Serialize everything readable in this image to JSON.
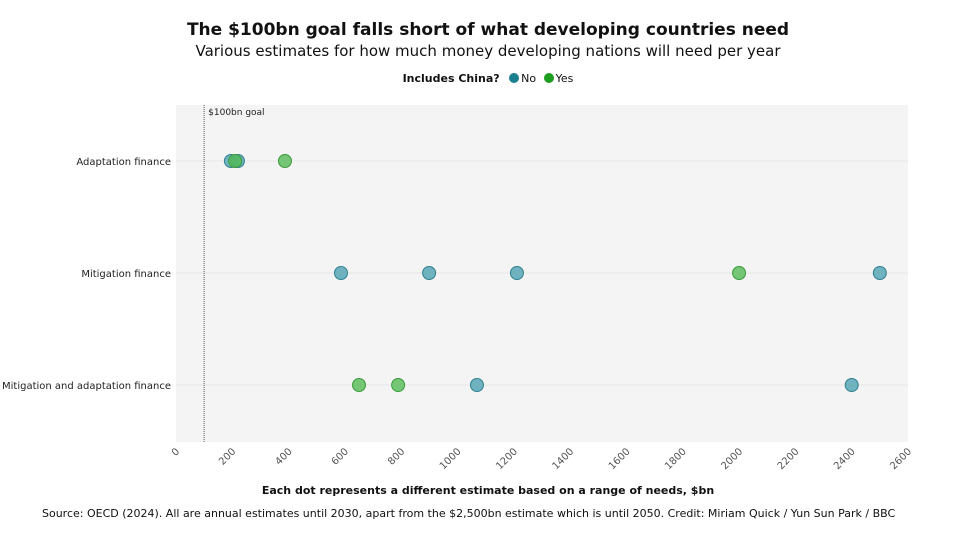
{
  "chart_data": {
    "type": "scatter",
    "title": "The $100bn goal falls short of what developing countries need",
    "subtitle": "Various estimates for how much money developing nations will need per year",
    "legend": {
      "title": "Includes China?",
      "placement": "top",
      "entries": [
        {
          "name": "No",
          "color": "#1b7f8e"
        },
        {
          "name": "Yes",
          "color": "#1e9e1e"
        }
      ]
    },
    "xlabel": "Each dot represents a different estimate based on a range of needs, $bn",
    "xlim": [
      0,
      2600
    ],
    "xticks": [
      0,
      200,
      400,
      600,
      800,
      1000,
      1200,
      1400,
      1600,
      1800,
      2000,
      2200,
      2400,
      2600
    ],
    "categories": [
      "Adaptation finance",
      "Mitigation finance",
      "Mitigation and adaptation finance"
    ],
    "reference_line": {
      "x": 100,
      "label": "$100bn goal"
    },
    "series": [
      {
        "name": "No",
        "color": "#4fa3b3",
        "points": [
          {
            "category": "Adaptation finance",
            "x": 195
          },
          {
            "category": "Adaptation finance",
            "x": 220
          },
          {
            "category": "Mitigation finance",
            "x": 586
          },
          {
            "category": "Mitigation finance",
            "x": 899
          },
          {
            "category": "Mitigation finance",
            "x": 1211
          },
          {
            "category": "Mitigation finance",
            "x": 2500
          },
          {
            "category": "Mitigation and adaptation finance",
            "x": 1069
          },
          {
            "category": "Mitigation and adaptation finance",
            "x": 2400
          }
        ]
      },
      {
        "name": "Yes",
        "color": "#55bb55",
        "points": [
          {
            "category": "Adaptation finance",
            "x": 210
          },
          {
            "category": "Adaptation finance",
            "x": 387
          },
          {
            "category": "Mitigation finance",
            "x": 2000
          },
          {
            "category": "Mitigation and adaptation finance",
            "x": 650
          },
          {
            "category": "Mitigation and adaptation finance",
            "x": 789
          }
        ]
      }
    ],
    "grid": false
  },
  "source": "Source: OECD (2024). All are annual estimates until 2030, apart from the $2,500bn estimate which is until 2050. Credit: Miriam Quick / Yun Sun Park / BBC"
}
